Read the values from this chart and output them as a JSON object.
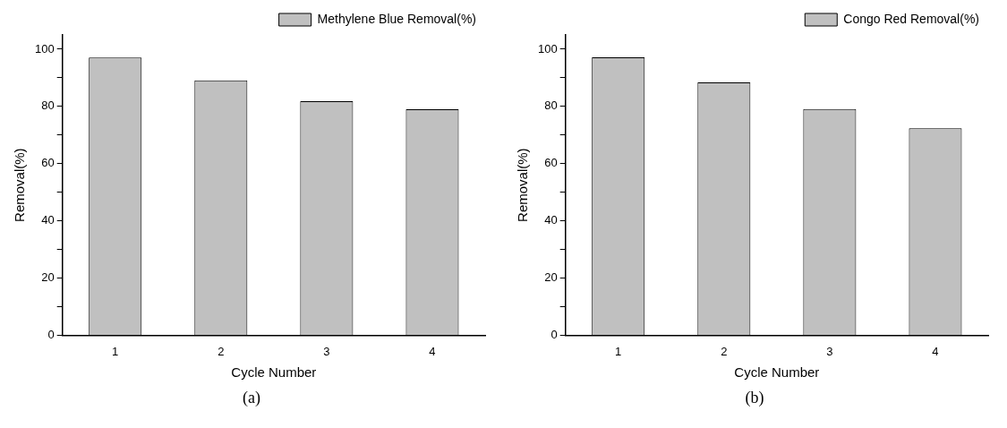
{
  "chart_data": [
    {
      "type": "bar",
      "categories": [
        "1",
        "2",
        "3",
        "4"
      ],
      "series": [
        {
          "name": "Methylene Blue Removal(%)",
          "color": "#c0c0c0",
          "values": [
            97.1,
            89.1,
            81.8,
            79.0
          ]
        }
      ],
      "xlabel": "Cycle Number",
      "ylabel": "Removal(%)",
      "ylim": [
        0,
        105
      ],
      "yticks": [
        0,
        {
          "value": 10,
          "label": null
        },
        20,
        {
          "value": 30,
          "label": null
        },
        40,
        {
          "value": 50,
          "label": null
        },
        60,
        {
          "value": 70,
          "label": null
        },
        80,
        {
          "value": 90,
          "label": null
        },
        100
      ],
      "grid": false,
      "legend": "top right",
      "annotations": [
        "(a)"
      ]
    },
    {
      "type": "bar",
      "categories": [
        "1",
        "2",
        "3",
        "4"
      ],
      "series": [
        {
          "name": "Congo Red Removal(%)",
          "color": "#c0c0c0",
          "values": [
            97.2,
            88.4,
            79.1,
            72.4
          ]
        }
      ],
      "xlabel": "Cycle Number",
      "ylabel": "Removal(%)",
      "ylim": [
        0,
        105
      ],
      "yticks": [
        0,
        {
          "value": 10,
          "label": null
        },
        20,
        {
          "value": 30,
          "label": null
        },
        40,
        {
          "value": 50,
          "label": null
        },
        60,
        {
          "value": 70,
          "label": null
        },
        80,
        {
          "value": 90,
          "label": null
        },
        100
      ],
      "grid": false,
      "legend": "top right",
      "annotations": [
        "(b)"
      ]
    }
  ]
}
